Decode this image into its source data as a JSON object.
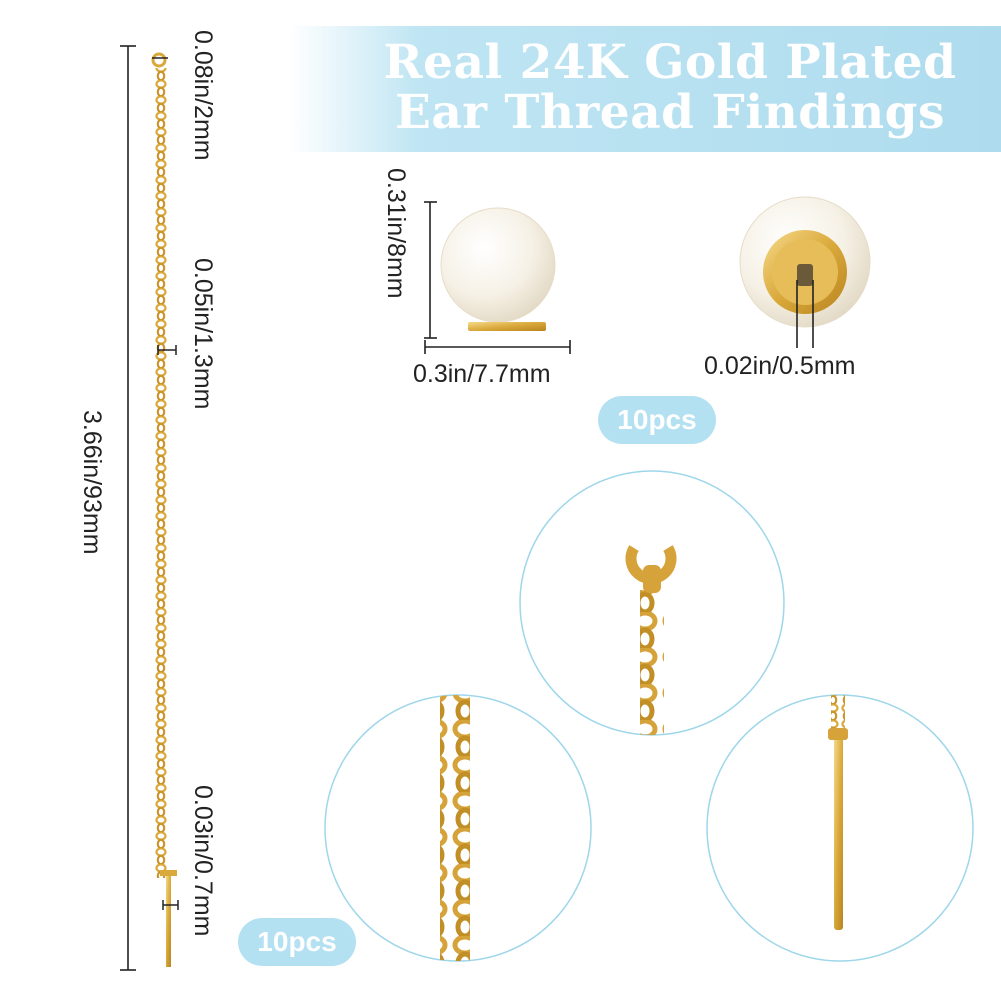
{
  "title": {
    "line1": "Real 24K Gold Plated",
    "line2": "Ear Thread Findings"
  },
  "dimensions": {
    "total_length": "3.66in/93mm",
    "ring_size": "0.08in/2mm",
    "chain_width": "0.05in/1.3mm",
    "pin_width": "0.03in/0.7mm",
    "bead_height": "0.31in/8mm",
    "bead_width": "0.3in/7.7mm",
    "hole_size": "0.02in/0.5mm"
  },
  "badges": {
    "pearls_qty": "10pcs",
    "threads_qty": "10pcs"
  },
  "colors": {
    "gold": "#d9a93b",
    "banner_blue": "#aedcee",
    "pearl": "#f4efe4"
  }
}
